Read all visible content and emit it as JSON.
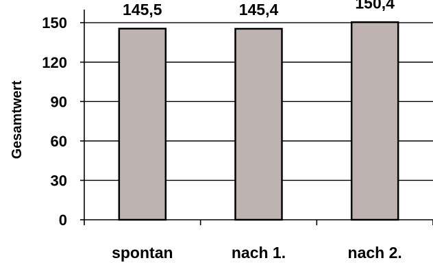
{
  "chart_data": {
    "type": "bar",
    "categories": [
      "spontan",
      "nach 1.",
      "nach 2."
    ],
    "values": [
      145.5,
      145.4,
      150.4
    ],
    "value_labels": [
      "145,5",
      "145,4",
      "150,4"
    ],
    "ylabel": "Gesamtwert",
    "xlabel": "",
    "ylim": [
      0,
      150
    ],
    "yticks": [
      0,
      30,
      60,
      90,
      120,
      150
    ],
    "ytick_labels": [
      "0",
      "30",
      "60",
      "90",
      "120",
      "150"
    ],
    "grid": true,
    "colors": {
      "bar_fill": "#bfb3b1",
      "bar_stroke": "#000000",
      "grid": "#000000"
    }
  }
}
